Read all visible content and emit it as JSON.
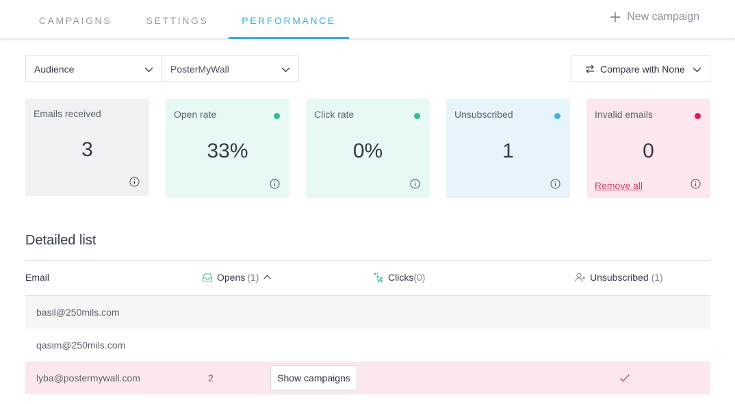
{
  "tabs": [
    {
      "label": "CAMPAIGNS",
      "active": false
    },
    {
      "label": "SETTINGS",
      "active": false
    },
    {
      "label": "PERFORMANCE",
      "active": true
    }
  ],
  "new_campaign_label": "New campaign",
  "filters": {
    "audience_label": "Audience",
    "list_value": "PosterMyWall",
    "compare_label": "Compare with None"
  },
  "stats": [
    {
      "label": "Emails received",
      "value": "3",
      "dot_color": null,
      "bg": "#f1f1f3"
    },
    {
      "label": "Open rate",
      "value": "33%",
      "dot_color": "#2bbf95",
      "bg": "#e8f8f4"
    },
    {
      "label": "Click rate",
      "value": "0%",
      "dot_color": "#2bbf95",
      "bg": "#e8f8f4"
    },
    {
      "label": "Unsubscribed",
      "value": "1",
      "dot_color": "#37b7e3",
      "bg": "#e7f4fb"
    },
    {
      "label": "Invalid emails",
      "value": "0",
      "dot_color": "#d81b60",
      "bg": "#fce7ec",
      "link": "Remove all"
    }
  ],
  "detailed_list": {
    "title": "Detailed list",
    "columns": {
      "email": "Email",
      "opens": "Opens",
      "opens_count": "(1)",
      "clicks": "Clicks",
      "clicks_count": "(0)",
      "unsubscribed": "Unsubscribed",
      "unsubscribed_count": "(1)"
    },
    "rows": [
      {
        "email": "basil@250mils.com",
        "opens": "",
        "unsubscribed": false
      },
      {
        "email": "qasim@250mils.com",
        "opens": "",
        "unsubscribed": false
      },
      {
        "email": "lyba@postermywall.com",
        "opens": "2",
        "button": "Show campaigns",
        "unsubscribed": true
      }
    ]
  },
  "colors": {
    "accent": "#3baed9",
    "invalid_link": "#c0426e"
  },
  "icons": [
    "plus-icon",
    "chevron-down-icon",
    "swap-icon",
    "info-icon",
    "inbox-icon",
    "cursor-click-icon",
    "user-remove-icon",
    "chevron-up-icon",
    "check-icon"
  ]
}
